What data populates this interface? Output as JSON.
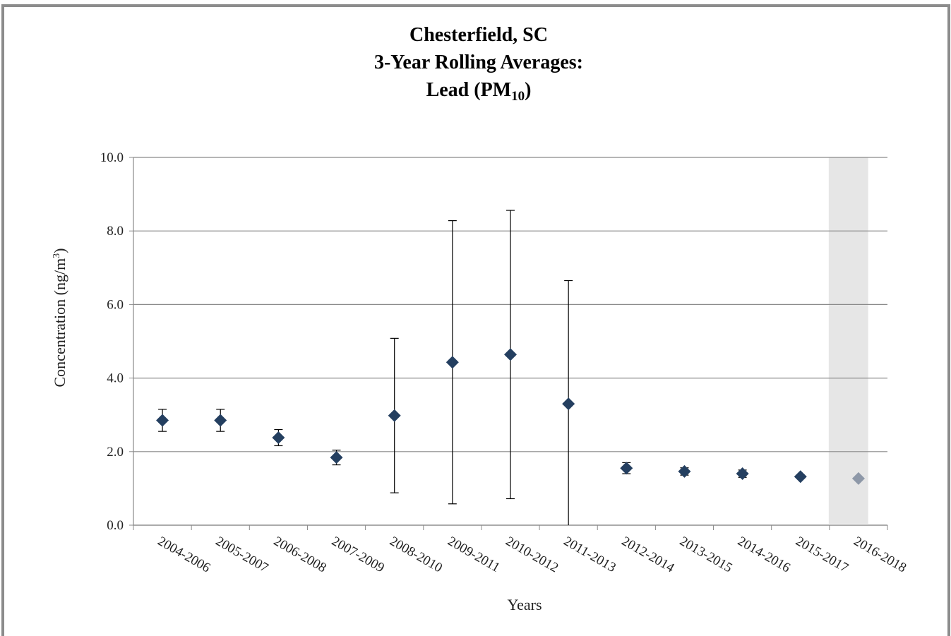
{
  "chart_data": {
    "type": "scatter-error",
    "title": [
      "Chesterfield, SC",
      "3-Year Rolling Averages:",
      [
        "Lead (PM",
        "10",
        ")"
      ]
    ],
    "x_label": "Years",
    "y_label": [
      "Concentration (ng/m",
      "3",
      ")"
    ],
    "categories": [
      "2004-2006",
      "2005-2007",
      "2006-2008",
      "2007-2009",
      "2008-2010",
      "2009-2011",
      "2010-2012",
      "2011-2013",
      "2012-2014",
      "2013-2015",
      "2014-2016",
      "2015-2017",
      "2016-2018"
    ],
    "values": [
      2.85,
      2.85,
      2.38,
      1.84,
      2.98,
      4.43,
      4.64,
      3.3,
      1.55,
      1.46,
      1.4,
      1.32,
      1.27
    ],
    "errors": [
      0.3,
      0.3,
      0.22,
      0.2,
      2.1,
      3.85,
      3.92,
      3.35,
      0.15,
      0.1,
      0.1,
      0.05,
      null
    ],
    "point_colors": [
      "#243f60",
      "#243f60",
      "#243f60",
      "#243f60",
      "#243f60",
      "#243f60",
      "#243f60",
      "#243f60",
      "#243f60",
      "#243f60",
      "#243f60",
      "#243f60",
      "#8e98a8"
    ],
    "shade": {
      "category_index": 12,
      "color": "#e6e6e6"
    },
    "ylim": [
      0,
      10
    ],
    "yticks": [
      {
        "value": 0,
        "label": "0.0"
      },
      {
        "value": 2,
        "label": "2.0"
      },
      {
        "value": 4,
        "label": "4.0"
      },
      {
        "value": 6,
        "label": "6.0"
      },
      {
        "value": 8,
        "label": "8.0"
      },
      {
        "value": 10,
        "label": "10.0"
      }
    ],
    "grid": true
  }
}
